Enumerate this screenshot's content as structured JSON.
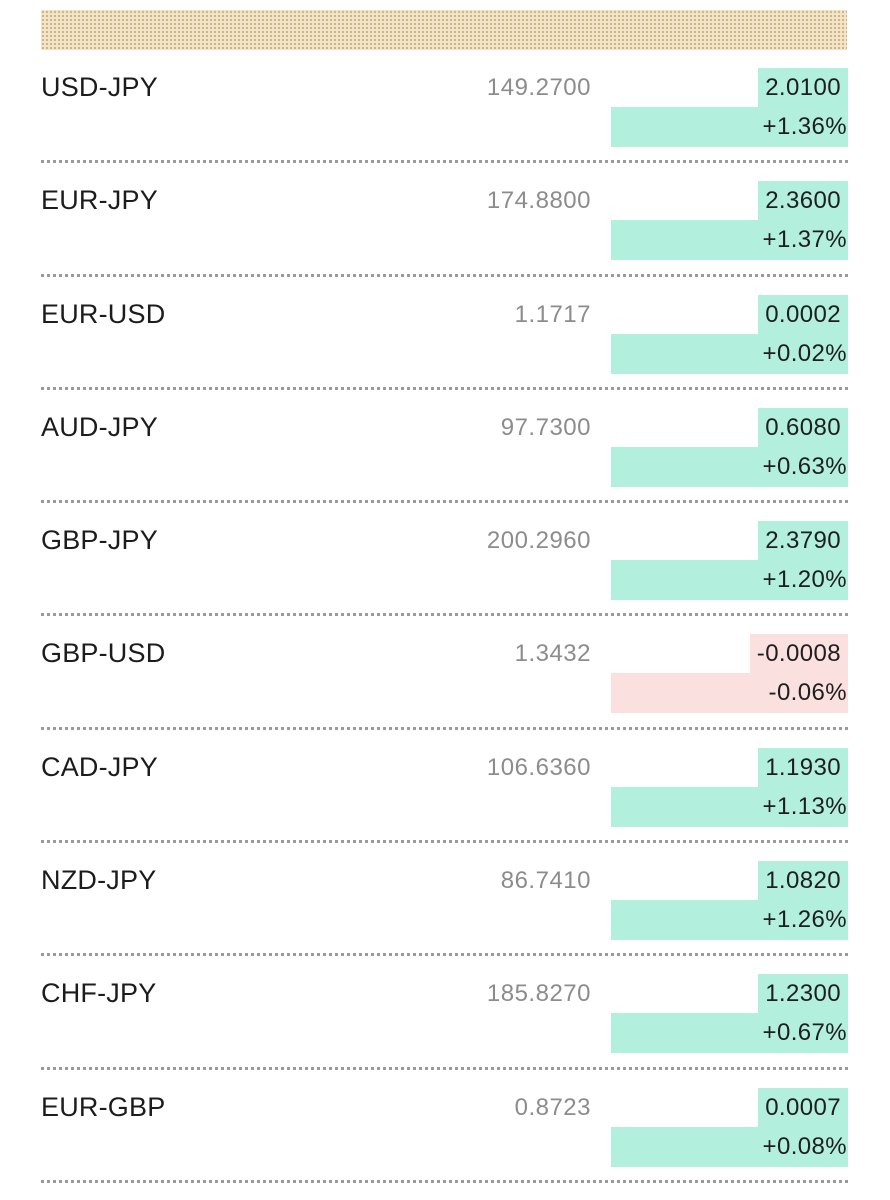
{
  "colors": {
    "up": "#b2efdc",
    "down": "#fae0df",
    "header_band": "#f1e4c9",
    "divider": "#9a9a9a"
  },
  "rates": [
    {
      "pair": "USD-JPY",
      "price": "149.2700",
      "change": "2.0100",
      "percent": "+1.36%",
      "direction": "up"
    },
    {
      "pair": "EUR-JPY",
      "price": "174.8800",
      "change": "2.3600",
      "percent": "+1.37%",
      "direction": "up"
    },
    {
      "pair": "EUR-USD",
      "price": "1.1717",
      "change": "0.0002",
      "percent": "+0.02%",
      "direction": "up"
    },
    {
      "pair": "AUD-JPY",
      "price": "97.7300",
      "change": "0.6080",
      "percent": "+0.63%",
      "direction": "up"
    },
    {
      "pair": "GBP-JPY",
      "price": "200.2960",
      "change": "2.3790",
      "percent": "+1.20%",
      "direction": "up"
    },
    {
      "pair": "GBP-USD",
      "price": "1.3432",
      "change": "-0.0008",
      "percent": "-0.06%",
      "direction": "down"
    },
    {
      "pair": "CAD-JPY",
      "price": "106.6360",
      "change": "1.1930",
      "percent": "+1.13%",
      "direction": "up"
    },
    {
      "pair": "NZD-JPY",
      "price": "86.7410",
      "change": "1.0820",
      "percent": "+1.26%",
      "direction": "up"
    },
    {
      "pair": "CHF-JPY",
      "price": "185.8270",
      "change": "1.2300",
      "percent": "+0.67%",
      "direction": "up"
    },
    {
      "pair": "EUR-GBP",
      "price": "0.8723",
      "change": "0.0007",
      "percent": "+0.08%",
      "direction": "up"
    }
  ]
}
